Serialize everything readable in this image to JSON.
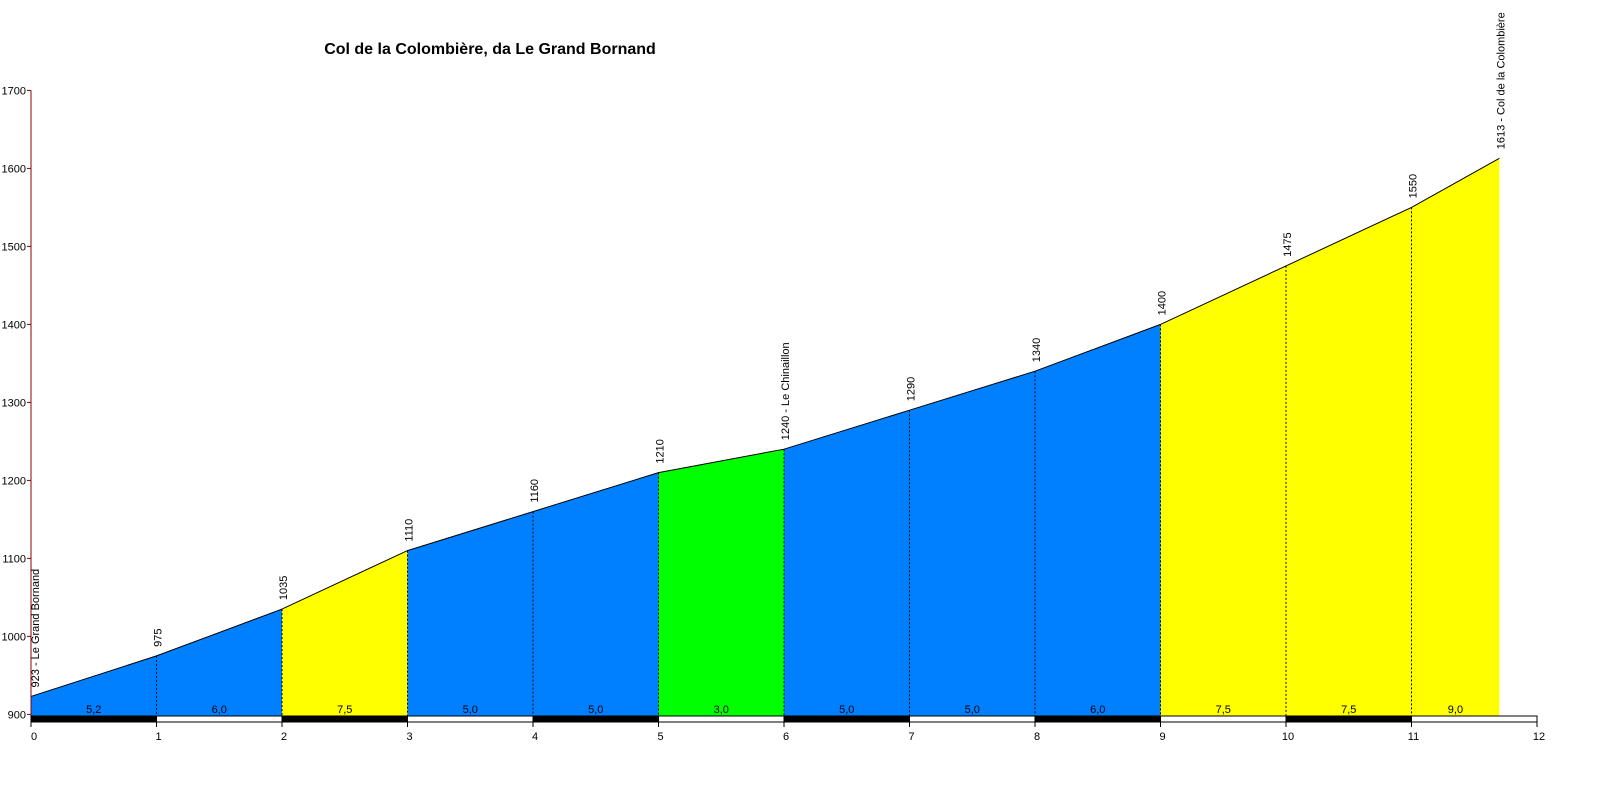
{
  "chart_data": {
    "type": "area",
    "title": "Col de la Colombière, da Le Grand Bornand",
    "xlabel": "",
    "ylabel": "",
    "xlim": [
      0,
      12
    ],
    "ylim": [
      880,
      1700
    ],
    "y_ticks": [
      900,
      1000,
      1100,
      1200,
      1300,
      1400,
      1500,
      1600,
      1700
    ],
    "x_ticks": [
      0,
      1,
      2,
      3,
      4,
      5,
      6,
      7,
      8,
      9,
      10,
      11,
      12
    ],
    "points": [
      {
        "x": 0,
        "y": 923,
        "label": "923 - Le Grand Bornand"
      },
      {
        "x": 1,
        "y": 975,
        "label": "975"
      },
      {
        "x": 2,
        "y": 1035,
        "label": "1035"
      },
      {
        "x": 3,
        "y": 1110,
        "label": "1110"
      },
      {
        "x": 4,
        "y": 1160,
        "label": "1160"
      },
      {
        "x": 5,
        "y": 1210,
        "label": "1210"
      },
      {
        "x": 6,
        "y": 1240,
        "label": "1240 - Le Chinaillon"
      },
      {
        "x": 7,
        "y": 1290,
        "label": "1290"
      },
      {
        "x": 8,
        "y": 1340,
        "label": "1340"
      },
      {
        "x": 9,
        "y": 1400,
        "label": "1400"
      },
      {
        "x": 10,
        "y": 1475,
        "label": "1475"
      },
      {
        "x": 11,
        "y": 1550,
        "label": "1550"
      },
      {
        "x": 11.7,
        "y": 1613,
        "label": "1613 - Col de la Colombière"
      }
    ],
    "segments": [
      {
        "from": 0,
        "to": 1,
        "gradient": "5,2",
        "color": "#0080ff"
      },
      {
        "from": 1,
        "to": 2,
        "gradient": "6,0",
        "color": "#0080ff"
      },
      {
        "from": 2,
        "to": 3,
        "gradient": "7,5",
        "color": "#ffff00"
      },
      {
        "from": 3,
        "to": 4,
        "gradient": "5,0",
        "color": "#0080ff"
      },
      {
        "from": 4,
        "to": 5,
        "gradient": "5,0",
        "color": "#0080ff"
      },
      {
        "from": 5,
        "to": 6,
        "gradient": "3,0",
        "color": "#00ff00"
      },
      {
        "from": 6,
        "to": 7,
        "gradient": "5,0",
        "color": "#0080ff"
      },
      {
        "from": 7,
        "to": 8,
        "gradient": "5,0",
        "color": "#0080ff"
      },
      {
        "from": 8,
        "to": 9,
        "gradient": "6,0",
        "color": "#0080ff"
      },
      {
        "from": 9,
        "to": 10,
        "gradient": "7,5",
        "color": "#ffff00"
      },
      {
        "from": 10,
        "to": 11,
        "gradient": "7,5",
        "color": "#ffff00"
      },
      {
        "from": 11,
        "to": 11.7,
        "gradient": "9,0",
        "color": "#ffff00"
      }
    ],
    "grid": false,
    "colors": {
      "axis": "#8b0000",
      "outline": "#000000",
      "bar_dark": "#000000",
      "bar_light": "#ffffff"
    }
  }
}
